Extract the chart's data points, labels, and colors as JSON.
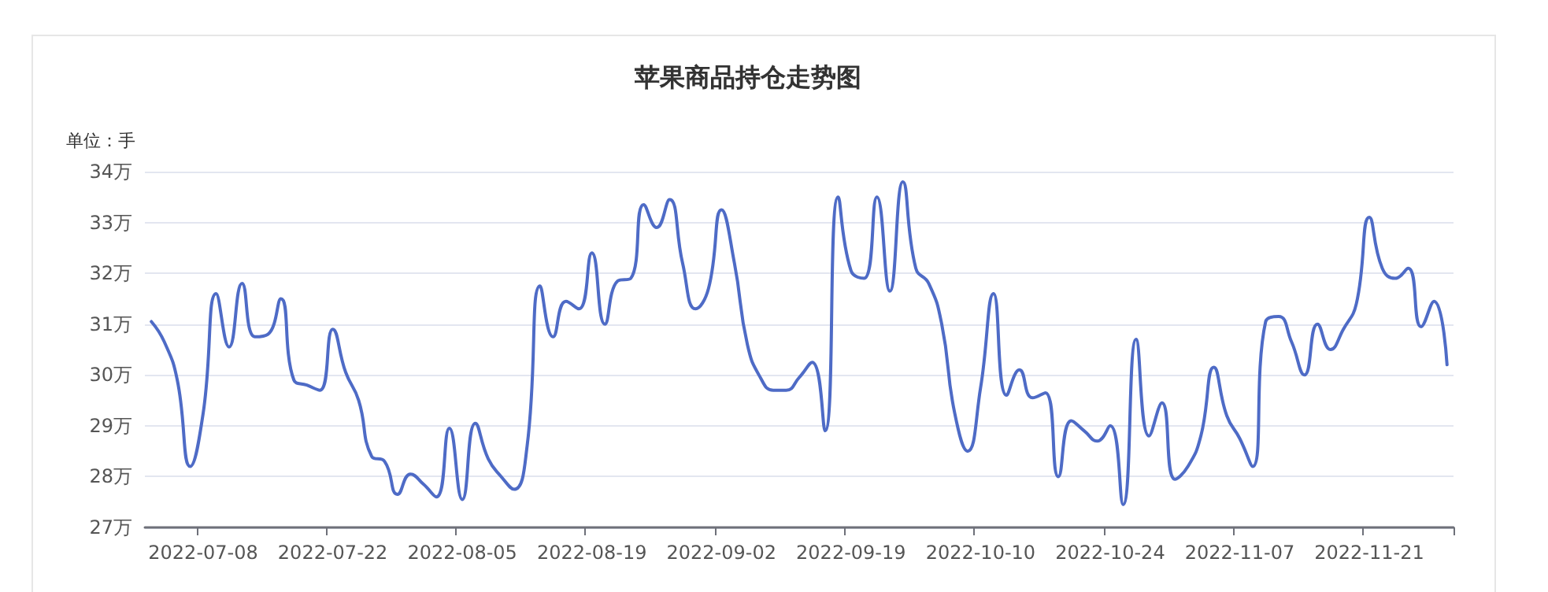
{
  "chart_data": {
    "type": "line",
    "title": "苹果商品持仓走势图",
    "ylabel": "单位：手",
    "categories": [
      null,
      null,
      null,
      null,
      "2022-07-08",
      null,
      null,
      null,
      null,
      null,
      null,
      null,
      null,
      null,
      "2022-07-22",
      null,
      null,
      null,
      null,
      null,
      null,
      null,
      null,
      null,
      "2022-08-05",
      null,
      null,
      null,
      null,
      null,
      null,
      null,
      null,
      null,
      "2022-08-19",
      null,
      null,
      null,
      null,
      null,
      null,
      null,
      null,
      null,
      "2022-09-02",
      null,
      null,
      null,
      null,
      null,
      null,
      null,
      null,
      null,
      "2022-09-19",
      null,
      null,
      null,
      null,
      null,
      null,
      null,
      null,
      null,
      "2022-10-10",
      null,
      null,
      null,
      null,
      null,
      null,
      null,
      null,
      null,
      "2022-10-24",
      null,
      null,
      null,
      null,
      null,
      null,
      null,
      null,
      null,
      "2022-11-07",
      null,
      null,
      null,
      null,
      null,
      null,
      null,
      null,
      null,
      "2022-11-21",
      null,
      null,
      null,
      null,
      null,
      null
    ],
    "series": [
      {
        "color": "#4e6bc6",
        "values": [
          31.05,
          30.65,
          29.9,
          28.2,
          29.25,
          31.6,
          30.55,
          31.8,
          30.75,
          30.8,
          31.5,
          29.9,
          29.8,
          29.7,
          30.9,
          30.05,
          29.5,
          28.4,
          28.3,
          27.65,
          28.05,
          27.85,
          27.6,
          28.95,
          27.55,
          29.05,
          28.35,
          28.0,
          27.75,
          28.6,
          31.75,
          30.75,
          31.45,
          31.3,
          32.4,
          31.0,
          31.85,
          31.9,
          33.35,
          32.9,
          33.45,
          32.2,
          31.3,
          31.7,
          33.25,
          32.2,
          30.6,
          29.95,
          29.7,
          29.7,
          29.95,
          30.25,
          28.9,
          33.5,
          32.05,
          31.9,
          33.5,
          31.65,
          33.8,
          32.1,
          31.8,
          31.0,
          29.25,
          28.5,
          29.75,
          31.6,
          29.6,
          30.1,
          29.55,
          29.65,
          28.0,
          29.1,
          28.9,
          28.7,
          29.0,
          27.45,
          30.7,
          28.8,
          29.45,
          27.95,
          28.2,
          28.8,
          30.15,
          29.2,
          28.75,
          28.2,
          31.05,
          31.15,
          30.65,
          30.0,
          31.0,
          30.5,
          30.9,
          31.4,
          33.1,
          32.1,
          31.9,
          32.1,
          30.95,
          31.45,
          30.2
        ]
      }
    ],
    "ylim": [
      27,
      34
    ],
    "yticks": [
      {
        "value": 27,
        "label": "27万"
      },
      {
        "value": 28,
        "label": "28万"
      },
      {
        "value": 29,
        "label": "29万"
      },
      {
        "value": 30,
        "label": "30万"
      },
      {
        "value": 31,
        "label": "31万"
      },
      {
        "value": 32,
        "label": "32万"
      },
      {
        "value": 33,
        "label": "33万"
      },
      {
        "value": 34,
        "label": "34万"
      }
    ],
    "grid": "y",
    "marker": "none",
    "line_style": "solid"
  }
}
